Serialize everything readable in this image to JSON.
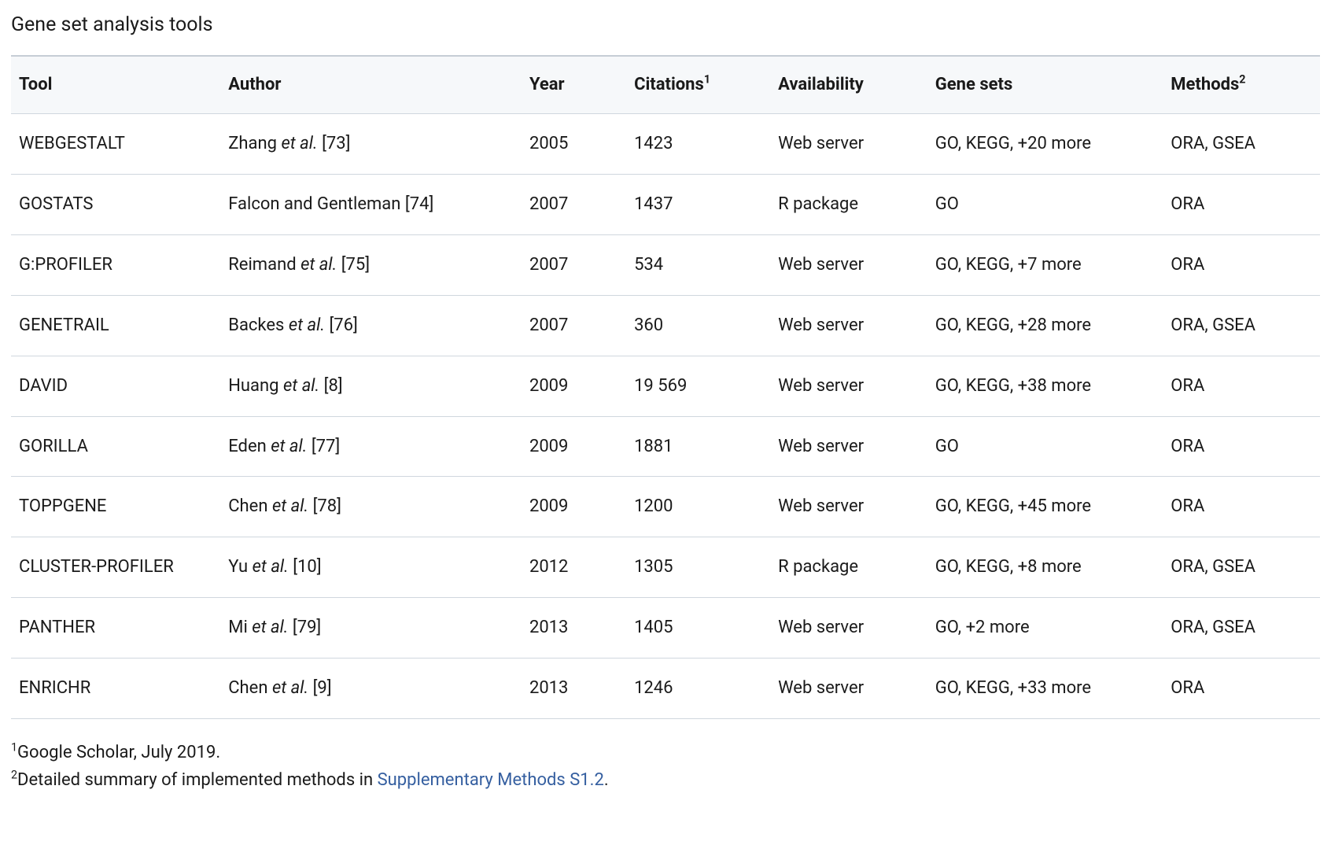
{
  "title": "Gene set analysis tools",
  "columns": {
    "tool": "Tool",
    "author": "Author",
    "year": "Year",
    "citations": "Citations",
    "citations_sup": "1",
    "availability": "Availability",
    "genesets": "Gene sets",
    "methods": "Methods",
    "methods_sup": "2"
  },
  "rows": [
    {
      "tool": "WEBGESTALT",
      "author_name": "Zhang",
      "author_etal": "et al.",
      "author_ref": "[73]",
      "year": "2005",
      "citations": "1423",
      "availability": "Web server",
      "genesets": "GO, KEGG, +20 more",
      "methods": "ORA, GSEA"
    },
    {
      "tool": "GOSTATS",
      "author_name": "Falcon and Gentleman",
      "author_etal": "",
      "author_ref": "[74]",
      "year": "2007",
      "citations": "1437",
      "availability": "R package",
      "genesets": "GO",
      "methods": "ORA"
    },
    {
      "tool": "G:PROFILER",
      "author_name": "Reimand",
      "author_etal": "et al.",
      "author_ref": "[75]",
      "year": "2007",
      "citations": "534",
      "availability": "Web server",
      "genesets": "GO, KEGG, +7 more",
      "methods": "ORA"
    },
    {
      "tool": "GENETRAIL",
      "author_name": "Backes",
      "author_etal": "et al.",
      "author_ref": "[76]",
      "year": "2007",
      "citations": "360",
      "availability": "Web server",
      "genesets": "GO, KEGG, +28 more",
      "methods": "ORA, GSEA"
    },
    {
      "tool": "DAVID",
      "author_name": "Huang",
      "author_etal": "et al.",
      "author_ref": "[8]",
      "year": "2009",
      "citations": "19 569",
      "availability": "Web server",
      "genesets": "GO, KEGG, +38 more",
      "methods": "ORA"
    },
    {
      "tool": "GORILLA",
      "author_name": "Eden",
      "author_etal": "et al.",
      "author_ref": "[77]",
      "year": "2009",
      "citations": "1881",
      "availability": "Web server",
      "genesets": "GO",
      "methods": "ORA"
    },
    {
      "tool": "TOPPGENE",
      "author_name": "Chen",
      "author_etal": "et al.",
      "author_ref": "[78]",
      "year": "2009",
      "citations": "1200",
      "availability": "Web server",
      "genesets": "GO, KEGG, +45 more",
      "methods": "ORA"
    },
    {
      "tool": "CLUSTER-PROFILER",
      "author_name": "Yu",
      "author_etal": "et al.",
      "author_ref": "[10]",
      "year": "2012",
      "citations": "1305",
      "availability": "R package",
      "genesets": "GO, KEGG, +8 more",
      "methods": "ORA, GSEA"
    },
    {
      "tool": "PANTHER",
      "author_name": "Mi",
      "author_etal": "et al.",
      "author_ref": "[79]",
      "year": "2013",
      "citations": "1405",
      "availability": "Web server",
      "genesets": "GO, +2 more",
      "methods": "ORA, GSEA"
    },
    {
      "tool": "ENRICHR",
      "author_name": "Chen",
      "author_etal": "et al.",
      "author_ref": "[9]",
      "year": "2013",
      "citations": "1246",
      "availability": "Web server",
      "genesets": "GO, KEGG, +33 more",
      "methods": "ORA"
    }
  ],
  "footnotes": {
    "f1_sup": "1",
    "f1_text": "Google Scholar, July 2019.",
    "f2_sup": "2",
    "f2_text_before": "Detailed summary of implemented methods in ",
    "f2_link_text": "Supplementary Methods S1.2",
    "f2_text_after": "."
  },
  "styling": {
    "background_color": "#ffffff",
    "header_bg_color": "#f6f8fa",
    "border_color": "#d0d7de",
    "top_border_color": "#c6cdd5",
    "text_color": "#1a1a1a",
    "link_color": "#355fa0",
    "font_family": "-apple-system, Segoe UI, Roboto, sans-serif",
    "title_fontsize": 25,
    "body_fontsize": 22,
    "header_fontweight": 700,
    "column_widths_pct": {
      "tool": 16,
      "author": 23,
      "year": 8,
      "citations": 11,
      "availability": 12,
      "genesets": 18,
      "methods": 12
    }
  }
}
